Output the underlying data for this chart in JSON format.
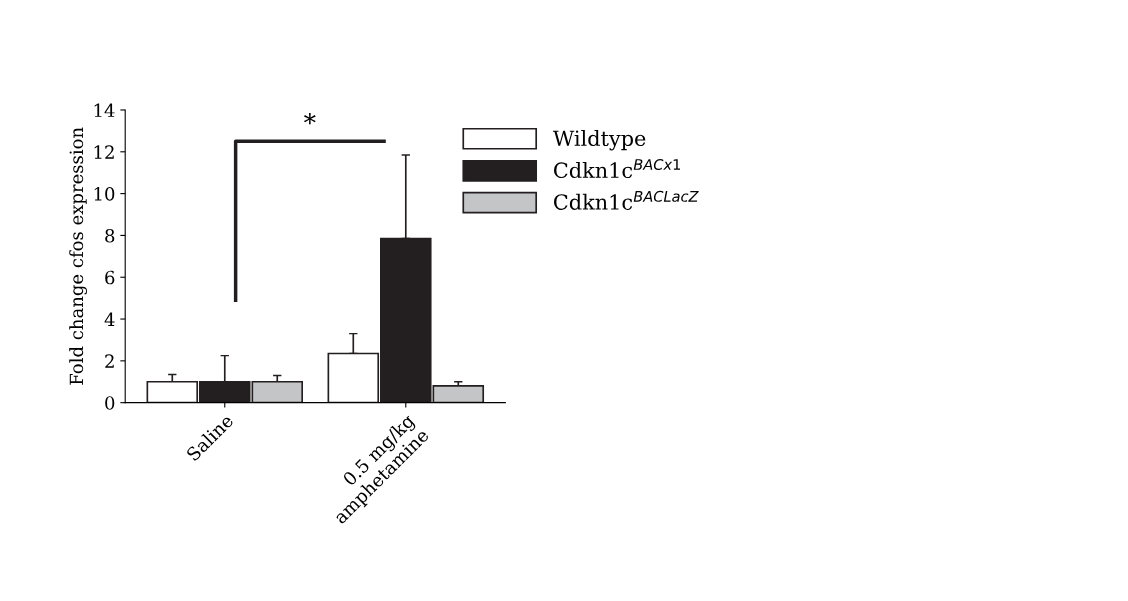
{
  "chart_data": {
    "type": "bar",
    "categories": [
      "Saline",
      "0.5 mg/kg\namphetamine"
    ],
    "ylabel": "Fold change cfos expression",
    "series": [
      {
        "name": "Wildtype",
        "color": "#ffffff",
        "values": [
          1.0,
          2.35
        ],
        "errors": [
          [
            1.0,
            1.35
          ],
          [
            2.35,
            3.3
          ]
        ]
      },
      {
        "name": "Cdkn1c$^{BACx1}$",
        "color": "#231f20",
        "values": [
          1.0,
          7.85
        ],
        "errors": [
          [
            1.0,
            2.25
          ],
          [
            7.85,
            11.85
          ]
        ]
      },
      {
        "name": "Cdkn1c$^{BACLacZ}$",
        "color": "#c4c5c7",
        "values": [
          1.0,
          0.8
        ],
        "errors": [
          [
            1.0,
            1.3
          ],
          [
            0.8,
            1.0
          ]
        ]
      }
    ],
    "ylim": [
      0,
      14
    ],
    "yticks": [
      0,
      2,
      4,
      6,
      8,
      10,
      12,
      14
    ],
    "annotations": [
      "*"
    ],
    "legend": "top right",
    "grid": false
  }
}
